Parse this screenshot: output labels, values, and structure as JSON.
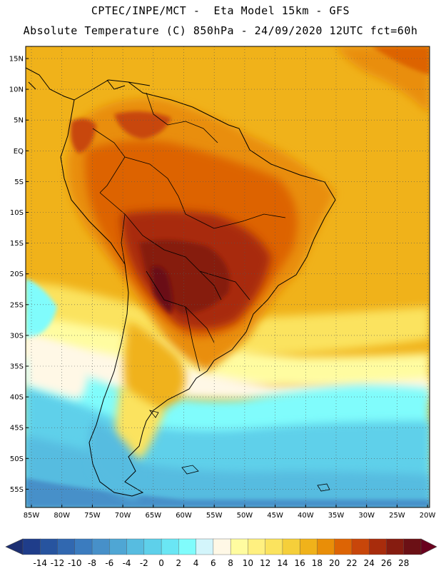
{
  "header": {
    "line1": "CPTEC/INPE/MCT -  Eta Model 15km - GFS",
    "line2": "Absolute Temperature (C) 850hPa - 24/09/2020 12UTC fct=60h"
  },
  "axes": {
    "lat_labels": [
      "15N",
      "10N",
      "5N",
      "EQ",
      "5S",
      "10S",
      "15S",
      "20S",
      "25S",
      "30S",
      "35S",
      "40S",
      "45S",
      "50S",
      "55S"
    ],
    "lon_labels": [
      "85W",
      "80W",
      "75W",
      "70W",
      "65W",
      "60W",
      "55W",
      "50W",
      "45W",
      "40W",
      "35W",
      "30W",
      "25W",
      "20W"
    ]
  },
  "colorbar": {
    "labels": [
      "-14",
      "-12",
      "-10",
      "-8",
      "-6",
      "-4",
      "-2",
      "0",
      "2",
      "4",
      "6",
      "8",
      "10",
      "12",
      "14",
      "16",
      "18",
      "20",
      "22",
      "24",
      "26",
      "28"
    ],
    "colors": [
      "#1f3d8a",
      "#27549f",
      "#3168b0",
      "#3b7cbf",
      "#4790c9",
      "#4fa6d4",
      "#57bce0",
      "#5ed0ea",
      "#6ae6f4",
      "#80fcfc",
      "#d3f5fb",
      "#fff8e6",
      "#fffca0",
      "#fff080",
      "#fbe35e",
      "#f5cf3a",
      "#f0b21a",
      "#e98e08",
      "#dd6404",
      "#c8460a",
      "#a82c0c",
      "#861c10",
      "#6b1015"
    ],
    "end_low": "#1c2f72",
    "end_high": "#6a001e"
  }
}
